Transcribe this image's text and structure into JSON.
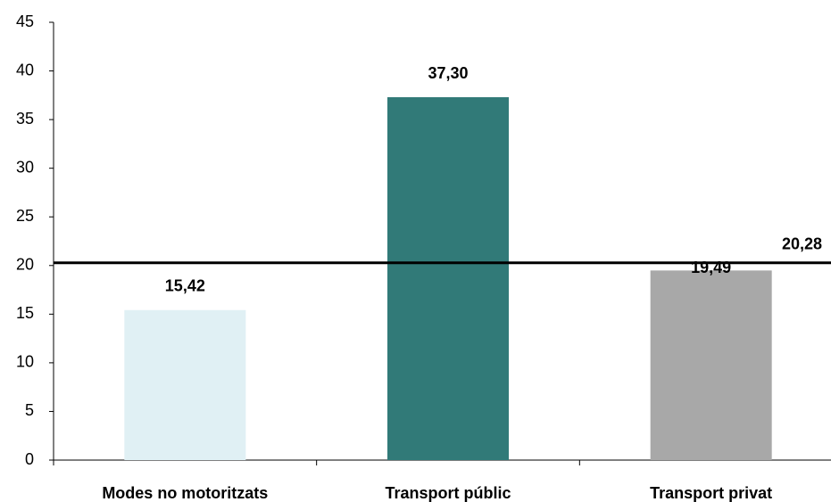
{
  "chart_data": {
    "type": "bar",
    "categories": [
      "Modes no motoritzats",
      "Transport públic",
      "Transport privat"
    ],
    "values": [
      15.42,
      37.3,
      19.49
    ],
    "value_labels": [
      "15,42",
      "37,30",
      "19,49"
    ],
    "colors": [
      "#e0f0f4",
      "#317a78",
      "#a8a8a8"
    ],
    "ylim": [
      0,
      45
    ],
    "yticks": [
      0,
      5,
      10,
      15,
      20,
      25,
      30,
      35,
      40,
      45
    ],
    "grid": false,
    "reference_line": {
      "value": 20.28,
      "label": "20,28",
      "color": "#000000"
    }
  }
}
